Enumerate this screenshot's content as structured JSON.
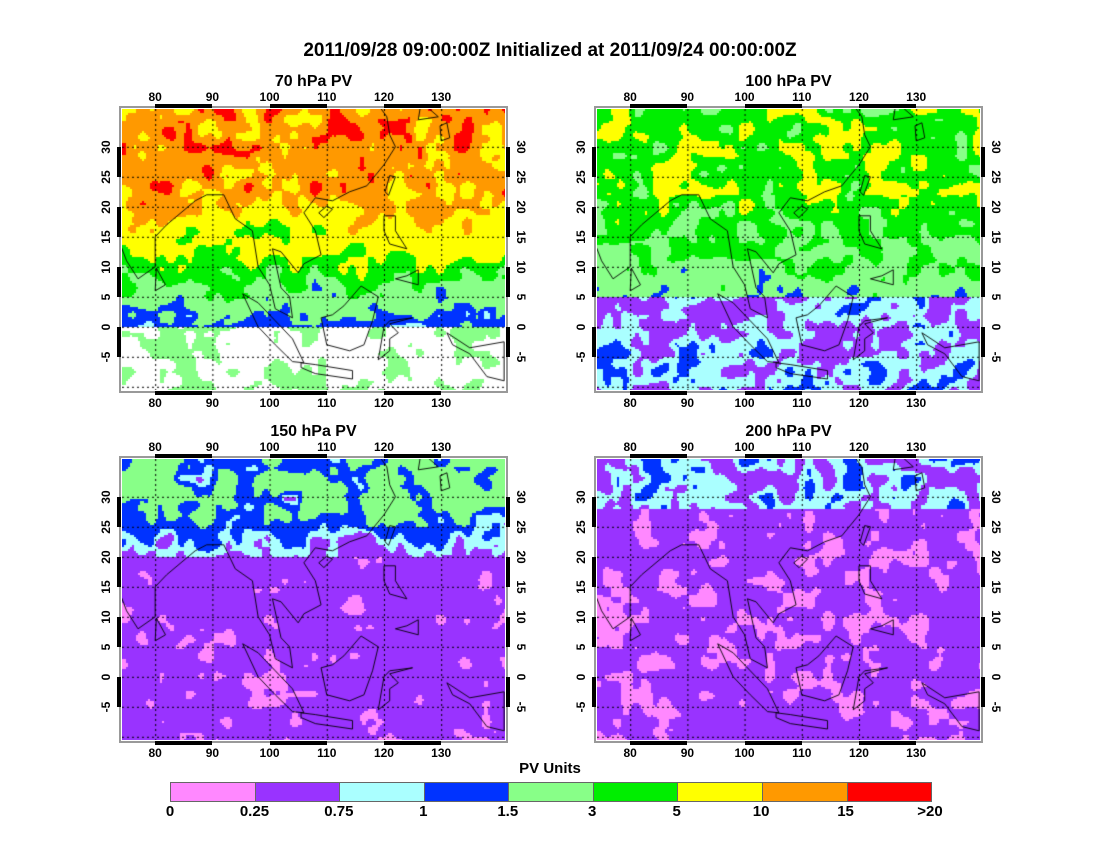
{
  "title": "2011/09/28 09:00:00Z Initialized at 2011/09/24 00:00:00Z",
  "panels": [
    {
      "title": "70 hPa PV"
    },
    {
      "title": "100 hPa PV"
    },
    {
      "title": "150 hPa PV"
    },
    {
      "title": "200 hPa PV"
    }
  ],
  "axes": {
    "lon_ticks": [
      "80",
      "90",
      "100",
      "110",
      "120",
      "130"
    ],
    "lat_ticks": [
      "-5",
      "0",
      "5",
      "10",
      "15",
      "20",
      "25",
      "30"
    ]
  },
  "colorbar": {
    "title": "PV Units",
    "labels": [
      "0",
      "0.25",
      "0.75",
      "1",
      "1.5",
      "3",
      "5",
      "10",
      "15",
      ">20"
    ],
    "levels": [
      0,
      0.25,
      0.75,
      1,
      1.5,
      3,
      5,
      10,
      15,
      20
    ],
    "colors": [
      "#ff88ff",
      "#9933ff",
      "#aaffff",
      "#0033ff",
      "#88ff88",
      "#00ee00",
      "#ffff00",
      "#ff9900",
      "#ff0000"
    ]
  }
}
